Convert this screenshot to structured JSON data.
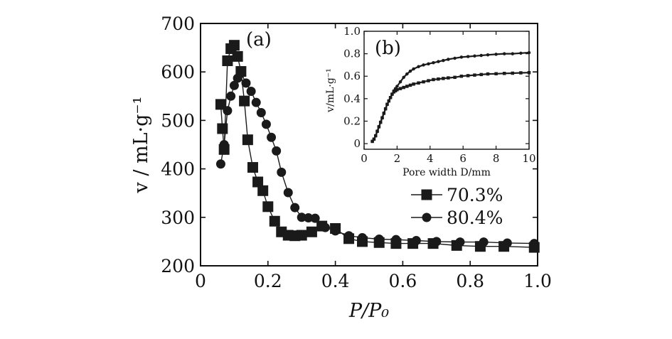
{
  "chart_data": [
    {
      "id": "main",
      "type": "line",
      "panel_label": "(a)",
      "xlabel": "P/P₀",
      "ylabel": "v / mL·g⁻¹",
      "xlim": [
        0,
        1.0
      ],
      "ylim": [
        200,
        700
      ],
      "xticks": [
        "0",
        "0.2",
        "0.4",
        "0.6",
        "0.8",
        "1.0"
      ],
      "xtick_values": [
        0,
        0.2,
        0.4,
        0.6,
        0.8,
        1.0
      ],
      "yticks": [
        "200",
        "300",
        "400",
        "500",
        "600",
        "700"
      ],
      "ytick_values": [
        200,
        300,
        400,
        500,
        600,
        700
      ],
      "legend_position": "right",
      "series": [
        {
          "name": "70.3%",
          "marker": "square",
          "x": [
            0.06,
            0.065,
            0.07,
            0.08,
            0.09,
            0.1,
            0.11,
            0.12,
            0.13,
            0.14,
            0.155,
            0.17,
            0.185,
            0.2,
            0.22,
            0.24,
            0.26,
            0.28,
            0.3,
            0.33,
            0.36,
            0.4,
            0.44,
            0.48,
            0.53,
            0.58,
            0.63,
            0.69,
            0.76,
            0.83,
            0.9,
            0.99
          ],
          "y": [
            533,
            483,
            440,
            623,
            648,
            655,
            632,
            601,
            540,
            460,
            403,
            373,
            355,
            322,
            292,
            270,
            263,
            262,
            263,
            270,
            282,
            277,
            256,
            250,
            248,
            246,
            246,
            246,
            242,
            240,
            240,
            238
          ]
        },
        {
          "name": "80.4%",
          "marker": "circle",
          "x": [
            0.06,
            0.07,
            0.08,
            0.09,
            0.1,
            0.11,
            0.12,
            0.135,
            0.15,
            0.165,
            0.18,
            0.195,
            0.21,
            0.225,
            0.24,
            0.26,
            0.28,
            0.3,
            0.32,
            0.34,
            0.37,
            0.4,
            0.44,
            0.48,
            0.53,
            0.58,
            0.64,
            0.7,
            0.77,
            0.84,
            0.91,
            0.99
          ],
          "y": [
            410,
            450,
            520,
            550,
            572,
            587,
            597,
            577,
            560,
            537,
            516,
            492,
            465,
            437,
            393,
            351,
            320,
            300,
            299,
            298,
            279,
            272,
            262,
            258,
            255,
            254,
            252,
            250,
            249,
            249,
            247,
            246
          ]
        }
      ]
    },
    {
      "id": "inset",
      "type": "line",
      "panel_label": "(b)",
      "xlabel": "Pore width D/mm",
      "ylabel": "v/mL·g⁻¹",
      "xlim": [
        0,
        10
      ],
      "ylim": [
        -0.05,
        1.0
      ],
      "xticks": [
        "0",
        "2",
        "4",
        "6",
        "8",
        "10"
      ],
      "xtick_values": [
        0,
        2,
        4,
        6,
        8,
        10
      ],
      "yticks": [
        "0",
        "0.2",
        "0.4",
        "0.6",
        "0.8",
        "1.0"
      ],
      "ytick_values": [
        0,
        0.2,
        0.4,
        0.6,
        0.8,
        1.0
      ],
      "series": [
        {
          "name": "70.3%",
          "marker": "square",
          "x": [
            0.5,
            0.6,
            0.7,
            0.8,
            0.9,
            1.0,
            1.1,
            1.2,
            1.3,
            1.4,
            1.5,
            1.6,
            1.7,
            1.8,
            1.9,
            2.0,
            2.2,
            2.4,
            2.6,
            2.8,
            3.0,
            3.3,
            3.6,
            3.9,
            4.2,
            4.5,
            4.8,
            5.1,
            5.5,
            5.9,
            6.3,
            6.7,
            7.1,
            7.5,
            8.0,
            8.5,
            9.0,
            9.5,
            10.0
          ],
          "y": [
            0.02,
            0.04,
            0.07,
            0.11,
            0.15,
            0.19,
            0.23,
            0.27,
            0.31,
            0.35,
            0.38,
            0.41,
            0.44,
            0.46,
            0.47,
            0.48,
            0.49,
            0.5,
            0.51,
            0.52,
            0.53,
            0.54,
            0.55,
            0.56,
            0.57,
            0.575,
            0.58,
            0.585,
            0.59,
            0.6,
            0.605,
            0.61,
            0.615,
            0.62,
            0.622,
            0.625,
            0.627,
            0.63,
            0.632
          ]
        },
        {
          "name": "80.4%",
          "marker": "circle",
          "x": [
            0.5,
            0.6,
            0.7,
            0.8,
            0.9,
            1.0,
            1.1,
            1.2,
            1.3,
            1.4,
            1.5,
            1.6,
            1.7,
            1.8,
            1.9,
            2.0,
            2.2,
            2.4,
            2.6,
            2.8,
            3.0,
            3.3,
            3.6,
            3.9,
            4.2,
            4.5,
            4.8,
            5.1,
            5.5,
            5.9,
            6.3,
            6.7,
            7.1,
            7.5,
            8.0,
            8.5,
            9.0,
            9.5,
            10.0
          ],
          "y": [
            0.02,
            0.04,
            0.07,
            0.11,
            0.15,
            0.19,
            0.23,
            0.27,
            0.31,
            0.35,
            0.38,
            0.41,
            0.44,
            0.47,
            0.49,
            0.51,
            0.55,
            0.59,
            0.62,
            0.645,
            0.665,
            0.685,
            0.7,
            0.71,
            0.72,
            0.73,
            0.74,
            0.75,
            0.76,
            0.77,
            0.775,
            0.78,
            0.785,
            0.79,
            0.795,
            0.8,
            0.8,
            0.805,
            0.81
          ]
        }
      ]
    }
  ]
}
